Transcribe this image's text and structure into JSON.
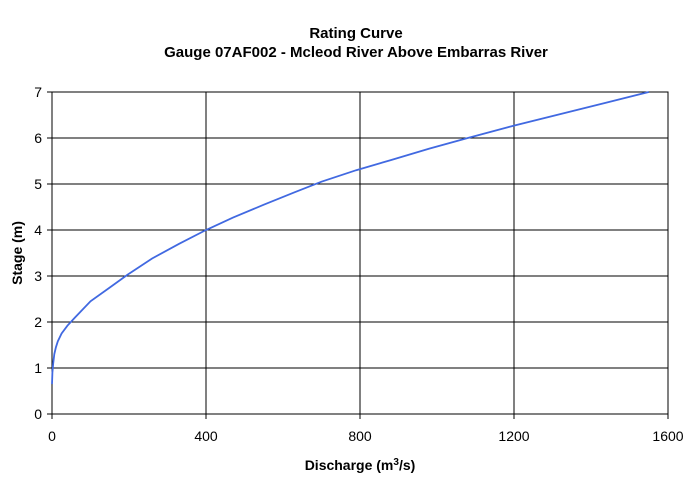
{
  "chart_data": {
    "type": "line",
    "title": "Rating Curve",
    "subtitle": "Gauge 07AF002 - Mcleod River Above Embarras River",
    "xlabel_main": "Discharge (m",
    "xlabel_sup": "3",
    "xlabel_tail": "/s)",
    "ylabel": "Stage (m)",
    "xlim": [
      0,
      1600
    ],
    "ylim": [
      0,
      7
    ],
    "xticks": [
      0,
      400,
      800,
      1200,
      1600
    ],
    "yticks": [
      0,
      1,
      2,
      3,
      4,
      5,
      6,
      7
    ],
    "grid": true,
    "series": [
      {
        "color": "#4169e1",
        "x": [
          0,
          1,
          3,
          6,
          10,
          15,
          25,
          40,
          60,
          100,
          150,
          200,
          260,
          330,
          400,
          470,
          550,
          630,
          700,
          790,
          880,
          980,
          1080,
          1200,
          1320,
          1440,
          1550
        ],
        "y": [
          0.65,
          0.9,
          1.1,
          1.3,
          1.45,
          1.58,
          1.75,
          1.92,
          2.1,
          2.45,
          2.75,
          3.05,
          3.38,
          3.7,
          4.0,
          4.27,
          4.55,
          4.82,
          5.05,
          5.3,
          5.52,
          5.77,
          6.0,
          6.27,
          6.52,
          6.77,
          7.0
        ]
      }
    ]
  }
}
